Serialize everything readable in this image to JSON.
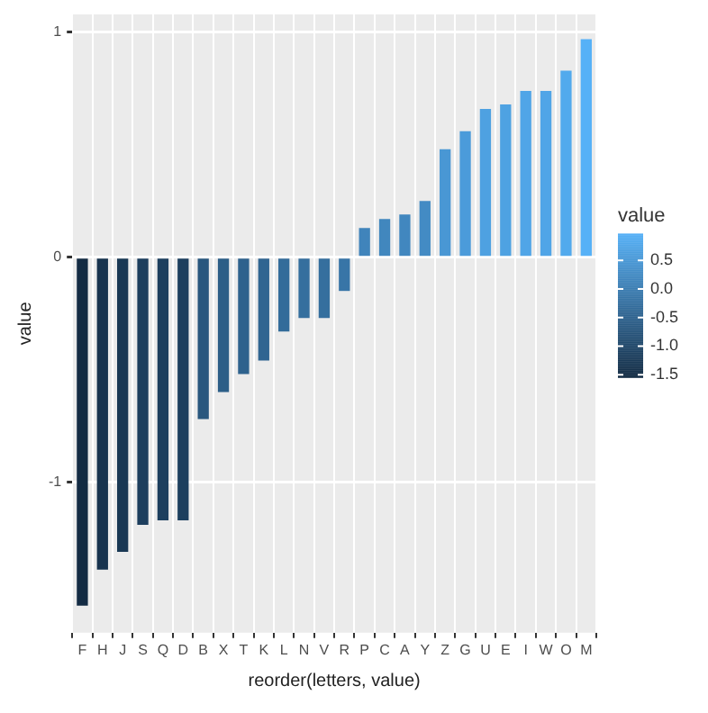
{
  "chart_data": {
    "type": "bar",
    "xlabel": "reorder(letters, value)",
    "ylabel": "value",
    "clabel": "value",
    "categories": [
      "F",
      "H",
      "J",
      "S",
      "Q",
      "D",
      "B",
      "X",
      "T",
      "K",
      "L",
      "N",
      "V",
      "R",
      "P",
      "C",
      "A",
      "Y",
      "Z",
      "G",
      "U",
      "E",
      "I",
      "W",
      "O",
      "M"
    ],
    "values": [
      -1.55,
      -1.39,
      -1.31,
      -1.19,
      -1.17,
      -1.17,
      -0.72,
      -0.6,
      -0.52,
      -0.46,
      -0.33,
      -0.27,
      -0.27,
      -0.15,
      0.13,
      0.17,
      0.19,
      0.25,
      0.48,
      0.56,
      0.66,
      0.68,
      0.74,
      0.74,
      0.83,
      0.97
    ],
    "colors": [
      "#132b43",
      "#17334e",
      "#193854",
      "#1d3e5d",
      "#1d3f5e",
      "#1d3f5e",
      "#29577e",
      "#2c5e87",
      "#2e628d",
      "#306591",
      "#336c9a",
      "#356f9e",
      "#356f9e",
      "#3875a7",
      "#4084bb",
      "#4187be",
      "#4187bf",
      "#438bc4",
      "#4997d4",
      "#4b9bda",
      "#4ea1e1",
      "#4ea2e2",
      "#50a5e7",
      "#50a5e7",
      "#52aaed",
      "#56b1f7"
    ],
    "ylim": [
      -1.67,
      1.08
    ],
    "yticks": [
      -1,
      0,
      1
    ],
    "clim": [
      -1.55,
      0.97
    ],
    "cticks": [
      {
        "value": -1.5,
        "label": "-1.5"
      },
      {
        "value": -1,
        "label": "-1.0"
      },
      {
        "value": -0.5,
        "label": "-0.5"
      },
      {
        "value": 0,
        "label": "0.0"
      },
      {
        "value": 0.5,
        "label": "0.5"
      }
    ],
    "grid": true
  }
}
